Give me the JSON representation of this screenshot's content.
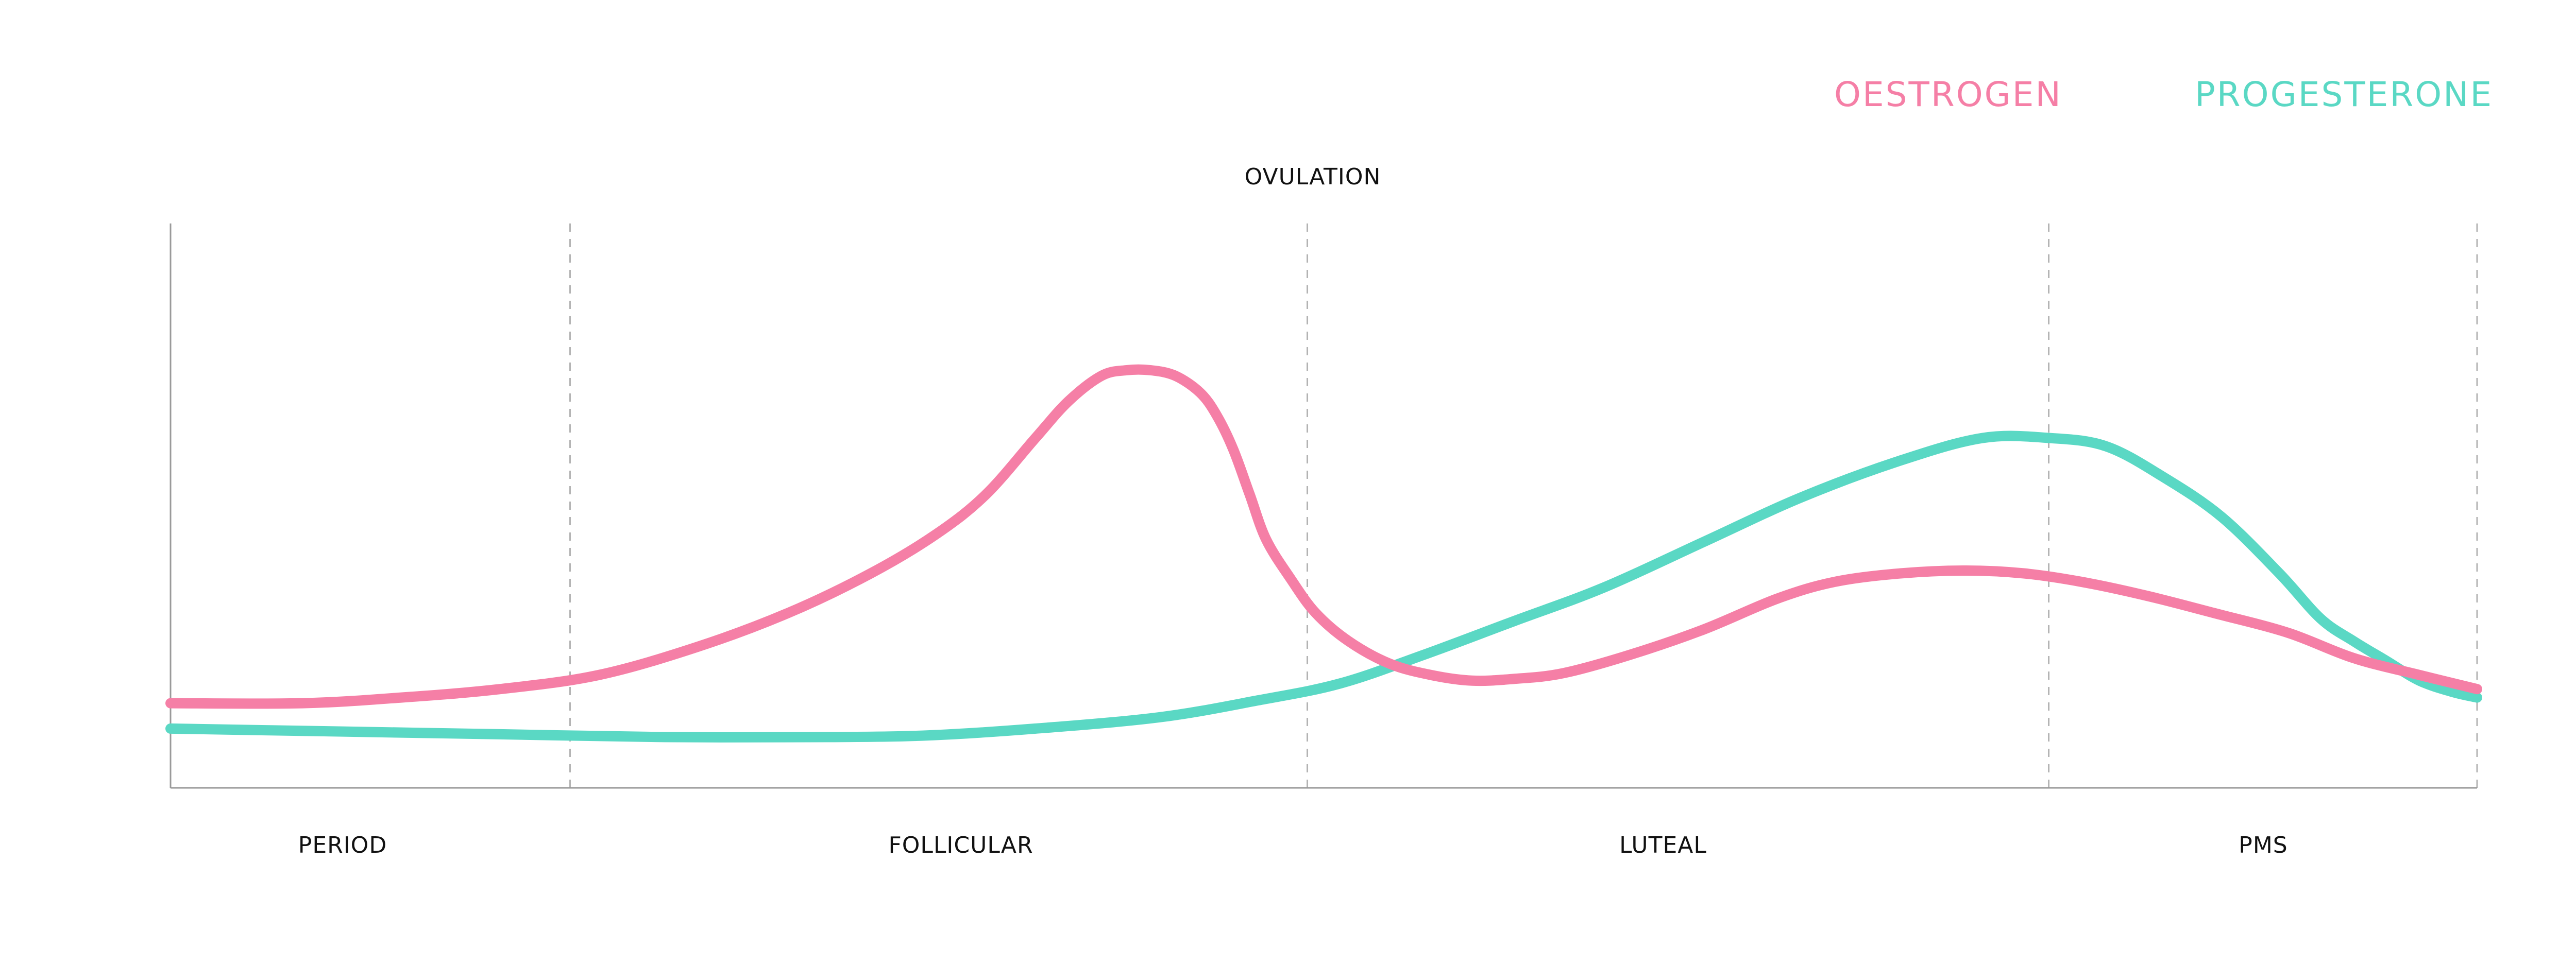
{
  "chart_data": {
    "type": "line",
    "title": "",
    "xlabel": "",
    "ylabel": "",
    "xlim": [
      0,
      28
    ],
    "ylim": [
      0,
      100
    ],
    "grid": false,
    "legend_placement": "top-right",
    "colors": {
      "oestrogen": "#f57fa6",
      "progesterone": "#5ad8c4",
      "axis": "#9a9a9a",
      "divider": "#b3b3b3",
      "text": "#111111"
    },
    "phases": [
      {
        "label": "PERIOD",
        "start": 0,
        "end": 4.85
      },
      {
        "label": "FOLLICULAR",
        "start": 4.85,
        "end": 13.8
      },
      {
        "label": "LUTEAL",
        "start": 13.8,
        "end": 22.8
      },
      {
        "label": "PMS",
        "start": 22.8,
        "end": 28
      }
    ],
    "annotations": [
      {
        "label": "OVULATION",
        "x": 13.8
      }
    ],
    "dividers": [
      4.85,
      13.8,
      22.8,
      28
    ],
    "series": [
      {
        "name": "OESTROGEN",
        "points": [
          [
            0,
            15
          ],
          [
            1.6,
            15
          ],
          [
            2.8,
            16
          ],
          [
            4,
            17.5
          ],
          [
            5.2,
            20
          ],
          [
            6.4,
            25
          ],
          [
            7.5,
            31
          ],
          [
            8.5,
            38
          ],
          [
            9.3,
            45
          ],
          [
            9.9,
            52
          ],
          [
            10.5,
            62
          ],
          [
            10.9,
            68.5
          ],
          [
            11.3,
            73
          ],
          [
            11.6,
            74
          ],
          [
            11.9,
            74
          ],
          [
            12.2,
            73
          ],
          [
            12.5,
            70
          ],
          [
            12.7,
            66
          ],
          [
            12.9,
            60
          ],
          [
            13.1,
            52
          ],
          [
            13.3,
            44
          ],
          [
            13.6,
            37
          ],
          [
            13.9,
            31
          ],
          [
            14.3,
            26
          ],
          [
            14.8,
            22
          ],
          [
            15.3,
            20
          ],
          [
            15.8,
            19
          ],
          [
            16.3,
            19.3
          ],
          [
            16.9,
            20.3
          ],
          [
            17.7,
            23.5
          ],
          [
            18.6,
            28
          ],
          [
            19.5,
            33.5
          ],
          [
            20.2,
            36.5
          ],
          [
            21,
            38
          ],
          [
            21.8,
            38.5
          ],
          [
            22.5,
            38
          ],
          [
            23.2,
            36.5
          ],
          [
            24,
            34
          ],
          [
            24.8,
            31
          ],
          [
            25.7,
            27.5
          ],
          [
            26.5,
            23
          ],
          [
            27.3,
            20
          ],
          [
            28,
            17.5
          ]
        ]
      },
      {
        "name": "PROGESTERONE",
        "points": [
          [
            0,
            10.5
          ],
          [
            2,
            10
          ],
          [
            4,
            9.5
          ],
          [
            6,
            9
          ],
          [
            8,
            9
          ],
          [
            9.2,
            9.3
          ],
          [
            10.5,
            10.5
          ],
          [
            12,
            12.5
          ],
          [
            13.2,
            15.5
          ],
          [
            14.2,
            18.5
          ],
          [
            15.2,
            23.5
          ],
          [
            16.3,
            29.5
          ],
          [
            17.4,
            35.5
          ],
          [
            18.6,
            43.5
          ],
          [
            19.8,
            51.5
          ],
          [
            21,
            58
          ],
          [
            22,
            62
          ],
          [
            22.8,
            62
          ],
          [
            23.5,
            60.5
          ],
          [
            24.2,
            55
          ],
          [
            24.9,
            48
          ],
          [
            25.6,
            38
          ],
          [
            26.1,
            30
          ],
          [
            26.5,
            26
          ],
          [
            26.9,
            22.5
          ],
          [
            27.3,
            19
          ],
          [
            27.7,
            17
          ],
          [
            28,
            16
          ]
        ]
      }
    ]
  }
}
